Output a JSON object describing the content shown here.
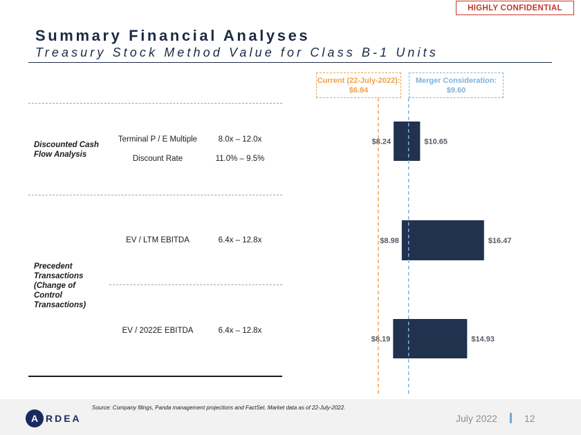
{
  "badge": "HIGHLY CONFIDENTIAL",
  "title": "Summary Financial Analyses",
  "subtitle": "Treasury Stock Method Value for Class B-1 Units",
  "groups": {
    "dcf": "Discounted Cash Flow Analysis",
    "precedent": "Precedent Transactions (Change of Control Transactions)"
  },
  "rows": [
    {
      "metric": "Terminal P / E Multiple",
      "range": "8.0x – 12.0x"
    },
    {
      "metric": "Discount Rate",
      "range": "11.0% – 9.5%"
    },
    {
      "metric": "EV / LTM EBITDA",
      "range": "6.4x – 12.8x"
    },
    {
      "metric": "EV / 2022E EBITDA",
      "range": "6.4x – 12.8x"
    }
  ],
  "reference_lines": {
    "current": {
      "label": "Current (22-July-2022): $6.84",
      "value": 6.84,
      "color": "#f0a04b"
    },
    "merger": {
      "label": "Merger Consideration: $9.60",
      "value": 9.6,
      "color": "#7fb2d9"
    }
  },
  "chart_data": {
    "type": "bar",
    "orientation": "horizontal-range",
    "categories": [
      "Discounted Cash Flow Analysis",
      "EV / LTM EBITDA",
      "EV / 2022E EBITDA"
    ],
    "series": [
      {
        "low": 8.24,
        "high": 10.65,
        "low_label": "$8.24",
        "high_label": "$10.65"
      },
      {
        "low": 8.98,
        "high": 16.47,
        "low_label": "$8.98",
        "high_label": "$16.47"
      },
      {
        "low": 8.19,
        "high": 14.93,
        "low_label": "$8.19",
        "high_label": "$14.93"
      }
    ],
    "bar_color": "#21324f",
    "xlim": [
      2.0,
      19.0
    ],
    "grid": false
  },
  "footer": {
    "source": "Source: Company filings, Panda management projections and FactSet. Market data as of 22-July-2022.",
    "logo_letter": "A",
    "logo_text": "RDEA",
    "date": "July 2022",
    "page": "12"
  }
}
